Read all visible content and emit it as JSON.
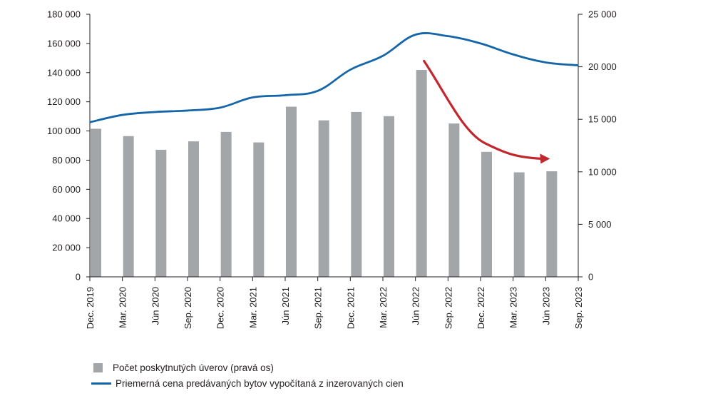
{
  "chart_data": {
    "type": "bar+line",
    "categories": [
      "Dec. 2019",
      "Mar. 2020",
      "Jún 2020",
      "Sep. 2020",
      "Dec. 2020",
      "Mar. 2021",
      "Jún 2021",
      "Sep. 2021",
      "Dec. 2021",
      "Mar. 2022",
      "Jún 2022",
      "Sep. 2022",
      "Dec. 2022",
      "Mar. 2023",
      "Jún 2023",
      "Sep. 2023"
    ],
    "left_axis": {
      "min": 0,
      "max": 180000,
      "step": 20000,
      "ticks": [
        "0",
        "20 000",
        "40 000",
        "60 000",
        "80 000",
        "100 000",
        "120 000",
        "140 000",
        "160 000",
        "180 000"
      ]
    },
    "right_axis": {
      "min": 0,
      "max": 25000,
      "step": 5000,
      "ticks": [
        "0",
        "5 000",
        "10 000",
        "15 000",
        "20 000",
        "25 000"
      ]
    },
    "series": [
      {
        "name": "Počet poskytnutých úverov (pravá os)",
        "type": "bar",
        "axis": "right",
        "color": "#a3a6a8",
        "values": [
          14100,
          13400,
          12100,
          12900,
          13800,
          12800,
          16200,
          14900,
          15700,
          15300,
          19700,
          14600,
          11900,
          9950,
          10050,
          null
        ]
      },
      {
        "name": "Priemerná cena predávaných bytov vypočítaná z inzerovaných cien",
        "type": "line",
        "axis": "left",
        "color": "#1565a9",
        "values": [
          106000,
          111000,
          113000,
          114000,
          116000,
          123000,
          124500,
          127500,
          142000,
          151500,
          166000,
          165000,
          160000,
          152500,
          147000,
          145000
        ]
      }
    ],
    "annotation": {
      "type": "curved-arrow",
      "color": "#c1272d",
      "from_category": "Jún 2022",
      "to_category": "Jún 2023",
      "meaning": "decline"
    }
  },
  "legend": {
    "bars_label": "Počet poskytnutých úverov (pravá os)",
    "line_label": "Priemerná cena predávaných bytov vypočítaná z inzerovaných cien"
  }
}
